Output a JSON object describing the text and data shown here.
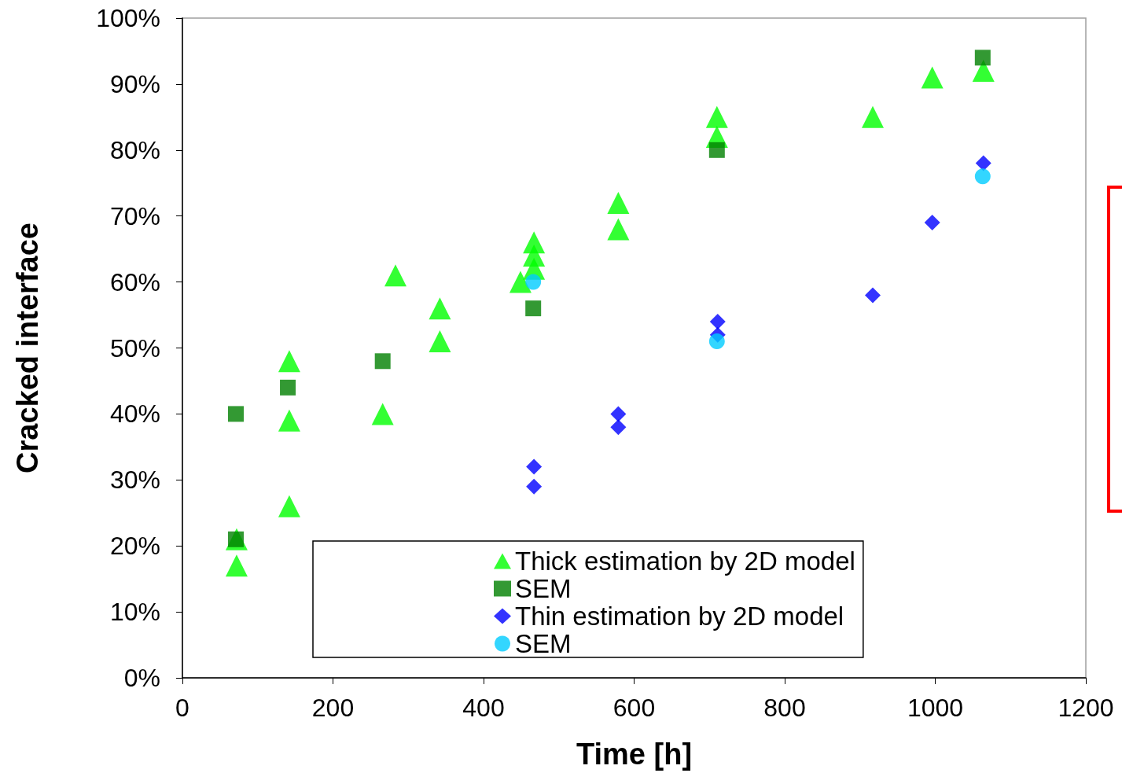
{
  "chart_data": {
    "type": "scatter",
    "xlabel": "Time [h]",
    "ylabel": "Cracked interface",
    "xlim": [
      0,
      1200
    ],
    "xticks": [
      0,
      200,
      400,
      600,
      800,
      1000,
      1200
    ],
    "ylim": [
      0,
      100
    ],
    "yticks": [
      {
        "value": 0,
        "label": "0%"
      },
      {
        "value": 10,
        "label": "10%"
      },
      {
        "value": 20,
        "label": "20%"
      },
      {
        "value": 30,
        "label": "30%"
      },
      {
        "value": 40,
        "label": "40%"
      },
      {
        "value": 50,
        "label": "50%"
      },
      {
        "value": 60,
        "label": "60%"
      },
      {
        "value": 70,
        "label": "70%"
      },
      {
        "value": 80,
        "label": "80%"
      },
      {
        "value": 90,
        "label": "90%"
      },
      {
        "value": 100,
        "label": "100%"
      }
    ],
    "grid": false,
    "legend": "bottom",
    "series": [
      {
        "name": "Thick estimation by 2D model",
        "color": "#00ff00",
        "marker": "triangle",
        "x": [
          72,
          72,
          142,
          142,
          142,
          283,
          266,
          342,
          342,
          449,
          467,
          467,
          467,
          579,
          579,
          710,
          710,
          917,
          996,
          1064
        ],
        "values": [
          17,
          21,
          48,
          39,
          26,
          61,
          40,
          56,
          51,
          60,
          66,
          64,
          62,
          72,
          68,
          85,
          82,
          85,
          91,
          92
        ]
      },
      {
        "name": "SEM",
        "color": "#008000",
        "marker": "square",
        "x": [
          71,
          71,
          140,
          266,
          466,
          710,
          1063
        ],
        "values": [
          40,
          21,
          44,
          48,
          56,
          80,
          94
        ]
      },
      {
        "name": "Thin estimation by 2D model",
        "color": "#0000ff",
        "marker": "diamond",
        "x": [
          467,
          467,
          579,
          579,
          711,
          711,
          917,
          996,
          1064
        ],
        "values": [
          32,
          29,
          40,
          38,
          54,
          52,
          58,
          69,
          78
        ]
      },
      {
        "name": "SEM",
        "color": "#00ccff",
        "marker": "circle",
        "x": [
          466,
          710,
          1063
        ],
        "values": [
          60,
          51,
          76
        ]
      }
    ]
  }
}
